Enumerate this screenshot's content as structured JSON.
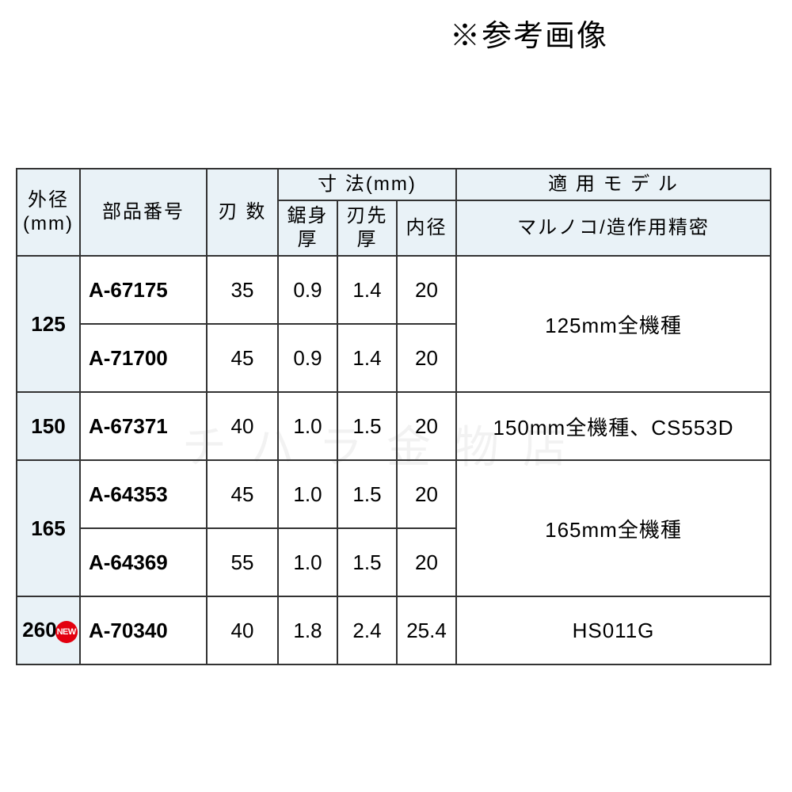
{
  "note": "※参考画像",
  "watermark": "チハラ金物店",
  "new_badge_text": "NEW",
  "table": {
    "headers": {
      "diameter_l1": "外径",
      "diameter_l2": "(mm)",
      "part": "部品番号",
      "teeth": "刃 数",
      "dims": "寸 法(mm)",
      "body": "鋸身厚",
      "tip": "刃先厚",
      "bore": "内径",
      "model_l1": "適 用 モ デ ル",
      "model_l2": "マルノコ/造作用精密"
    },
    "groups": [
      {
        "diameter": "125",
        "model": "125mm全機種",
        "rows": [
          {
            "part": "A-67175",
            "teeth": "35",
            "body": "0.9",
            "tip": "1.4",
            "bore": "20"
          },
          {
            "part": "A-71700",
            "teeth": "45",
            "body": "0.9",
            "tip": "1.4",
            "bore": "20"
          }
        ]
      },
      {
        "diameter": "150",
        "model": "150mm全機種、CS553D",
        "rows": [
          {
            "part": "A-67371",
            "teeth": "40",
            "body": "1.0",
            "tip": "1.5",
            "bore": "20"
          }
        ]
      },
      {
        "diameter": "165",
        "model": "165mm全機種",
        "rows": [
          {
            "part": "A-64353",
            "teeth": "45",
            "body": "1.0",
            "tip": "1.5",
            "bore": "20"
          },
          {
            "part": "A-64369",
            "teeth": "55",
            "body": "1.0",
            "tip": "1.5",
            "bore": "20"
          }
        ]
      },
      {
        "diameter": "260",
        "new": true,
        "model": "HS011G",
        "rows": [
          {
            "part": "A-70340",
            "teeth": "40",
            "body": "1.8",
            "tip": "2.4",
            "bore": "25.4"
          }
        ]
      }
    ]
  },
  "style": {
    "header_bg": "#e9f2f7",
    "border_color": "#333333",
    "text_color": "#000000",
    "badge_bg": "#e3000f",
    "badge_fg": "#ffffff",
    "body_font_size": 26,
    "header_font_size": 24,
    "note_font_size": 38
  }
}
